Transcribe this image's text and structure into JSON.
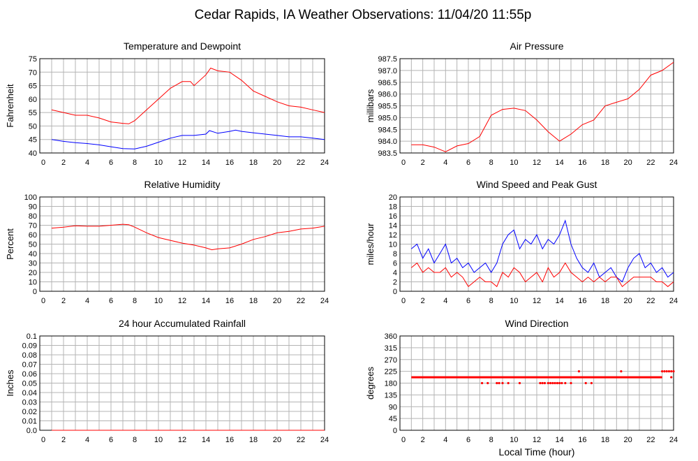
{
  "page_title": "Cedar Rapids, IA Weather Observations: 11/04/20 11:55p",
  "colors": {
    "red": "#ff0000",
    "blue": "#0000ff"
  },
  "chart_data": [
    {
      "id": "temp",
      "type": "line",
      "title": "Temperature and Dewpoint",
      "ylabel": "Fahrenheit",
      "xlabel": "",
      "xlim": [
        0,
        24
      ],
      "ylim": [
        40,
        75
      ],
      "xticks": [
        2,
        4,
        6,
        8,
        10,
        12,
        14,
        16,
        18,
        20,
        22,
        24
      ],
      "yticks": [
        40,
        45,
        50,
        55,
        60,
        65,
        70,
        75
      ],
      "ytick_labels": [
        "40",
        "45",
        "50",
        "55",
        "60",
        "65",
        "70",
        "75"
      ],
      "grid": true,
      "series": [
        {
          "color": "#ff0000",
          "x": [
            1,
            2,
            3,
            4,
            5,
            6,
            7,
            7.5,
            8,
            9,
            10,
            11,
            12,
            12.7,
            13,
            14,
            14.4,
            15,
            16,
            17,
            18,
            19,
            20,
            21,
            22,
            23,
            24
          ],
          "y": [
            56,
            55,
            54,
            54,
            53,
            51.5,
            51,
            50.8,
            52,
            56,
            60,
            64,
            66.5,
            66.5,
            65,
            69,
            71.5,
            70.5,
            70,
            67,
            63,
            61,
            59,
            57.5,
            57,
            56,
            55
          ]
        },
        {
          "color": "#0000ff",
          "x": [
            1,
            2,
            3,
            4,
            5,
            6,
            7,
            8,
            9,
            10,
            11,
            12,
            13,
            14,
            14.3,
            15,
            16,
            16.5,
            17,
            18,
            19,
            20,
            21,
            22,
            23,
            24
          ],
          "y": [
            45,
            44.3,
            43.8,
            43.5,
            43,
            42.3,
            41.6,
            41.5,
            42.5,
            44,
            45.5,
            46.5,
            46.5,
            47,
            48.3,
            47.3,
            48,
            48.5,
            48,
            47.5,
            47,
            46.5,
            46,
            46,
            45.5,
            45
          ]
        }
      ]
    },
    {
      "id": "pressure",
      "type": "line",
      "title": "Air Pressure",
      "ylabel": "millibars",
      "xlabel": "",
      "xlim": [
        0,
        24
      ],
      "ylim": [
        983.5,
        987.5
      ],
      "xticks": [
        2,
        4,
        6,
        8,
        10,
        12,
        14,
        16,
        18,
        20,
        22,
        24
      ],
      "yticks": [
        983.5,
        984.0,
        984.5,
        985.0,
        985.5,
        986.0,
        986.5,
        987.0,
        987.5
      ],
      "ytick_labels": [
        "983.5",
        "984.0",
        "984.5",
        "985.0",
        "985.5",
        "986.0",
        "986.5",
        "987.0",
        "987.5"
      ],
      "grid": true,
      "series": [
        {
          "color": "#ff0000",
          "x": [
            1,
            2,
            3,
            4,
            5,
            6,
            7,
            8,
            9,
            10,
            11,
            12,
            13,
            14,
            15,
            16,
            17,
            18,
            19,
            20,
            21,
            22,
            23,
            24
          ],
          "y": [
            983.85,
            983.85,
            983.75,
            983.55,
            983.8,
            983.9,
            984.2,
            985.1,
            985.35,
            985.4,
            985.3,
            984.9,
            984.4,
            984.0,
            984.3,
            984.7,
            984.9,
            985.5,
            985.65,
            985.8,
            986.2,
            986.8,
            987.0,
            987.35
          ]
        }
      ]
    },
    {
      "id": "humidity",
      "type": "line",
      "title": "Relative Humidity",
      "ylabel": "Percent",
      "xlabel": "",
      "xlim": [
        0,
        24
      ],
      "ylim": [
        0,
        100
      ],
      "xticks": [
        2,
        4,
        6,
        8,
        10,
        12,
        14,
        16,
        18,
        20,
        22,
        24
      ],
      "yticks": [
        0,
        10,
        20,
        30,
        40,
        50,
        60,
        70,
        80,
        90,
        100
      ],
      "ytick_labels": [
        "0",
        "10",
        "20",
        "30",
        "40",
        "50",
        "60",
        "70",
        "80",
        "90",
        "100"
      ],
      "grid": true,
      "series": [
        {
          "color": "#ff0000",
          "x": [
            1,
            2,
            3,
            4,
            5,
            6,
            7,
            7.5,
            8,
            9,
            10,
            11,
            12,
            13,
            14,
            14.5,
            15,
            16,
            17,
            18,
            19,
            20,
            21,
            22,
            23,
            24
          ],
          "y": [
            67,
            68,
            69.5,
            69,
            69,
            70,
            71,
            70.5,
            68,
            62,
            57,
            54,
            51,
            49,
            46,
            44,
            45,
            46,
            50,
            55,
            58,
            62,
            63.5,
            66,
            67,
            69
          ]
        }
      ]
    },
    {
      "id": "wind",
      "type": "line",
      "title": "Wind Speed and Peak Gust",
      "ylabel": "miles/hour",
      "xlabel": "",
      "xlim": [
        0,
        24
      ],
      "ylim": [
        0,
        20
      ],
      "xticks": [
        2,
        4,
        6,
        8,
        10,
        12,
        14,
        16,
        18,
        20,
        22,
        24
      ],
      "yticks": [
        0,
        2,
        4,
        6,
        8,
        10,
        12,
        14,
        16,
        18,
        20
      ],
      "ytick_labels": [
        "0",
        "2",
        "4",
        "6",
        "8",
        "10",
        "12",
        "14",
        "16",
        "18",
        "20"
      ],
      "grid": true,
      "series": [
        {
          "color": "#0000ff",
          "x": [
            1,
            1.5,
            2,
            2.5,
            3,
            3.5,
            4,
            4.5,
            5,
            5.5,
            6,
            6.5,
            7,
            7.5,
            8,
            8.5,
            9,
            9.5,
            10,
            10.5,
            11,
            11.5,
            12,
            12.5,
            13,
            13.5,
            14,
            14.5,
            15,
            15.5,
            16,
            16.5,
            17,
            17.5,
            18,
            18.5,
            19,
            19.5,
            20,
            20.5,
            21,
            21.5,
            22,
            22.5,
            23,
            23.5,
            24
          ],
          "y": [
            9,
            10,
            7,
            9,
            6,
            8,
            10,
            6,
            7,
            5,
            6,
            4,
            5,
            6,
            4,
            6,
            10,
            12,
            13,
            9,
            11,
            10,
            12,
            9,
            11,
            10,
            12,
            15,
            10,
            7,
            5,
            4,
            6,
            3,
            4,
            5,
            3,
            2,
            5,
            7,
            8,
            5,
            6,
            4,
            5,
            3,
            4
          ]
        },
        {
          "color": "#ff0000",
          "x": [
            1,
            1.5,
            2,
            2.5,
            3,
            3.5,
            4,
            4.5,
            5,
            5.5,
            6,
            6.5,
            7,
            7.5,
            8,
            8.5,
            9,
            9.5,
            10,
            10.5,
            11,
            11.5,
            12,
            12.5,
            13,
            13.5,
            14,
            14.5,
            15,
            15.5,
            16,
            16.5,
            17,
            17.5,
            18,
            18.5,
            19,
            19.5,
            20,
            20.5,
            21,
            21.5,
            22,
            22.5,
            23,
            23.5,
            24
          ],
          "y": [
            5,
            6,
            4,
            5,
            4,
            4,
            5,
            3,
            4,
            3,
            1,
            2,
            3,
            2,
            2,
            1,
            4,
            3,
            5,
            4,
            2,
            3,
            4,
            2,
            5,
            3,
            4,
            6,
            4,
            3,
            2,
            3,
            2,
            3,
            2,
            3,
            3,
            1,
            2,
            3,
            3,
            3,
            3,
            2,
            2,
            1,
            2
          ]
        }
      ]
    },
    {
      "id": "rain",
      "type": "line",
      "title": "24 hour Accumulated Rainfall",
      "ylabel": "Inches",
      "xlabel": "",
      "xlim": [
        0,
        24
      ],
      "ylim": [
        0,
        0.1
      ],
      "xticks": [
        2,
        4,
        6,
        8,
        10,
        12,
        14,
        16,
        18,
        20,
        22,
        24
      ],
      "yticks": [
        0,
        0.01,
        0.02,
        0.03,
        0.04,
        0.05,
        0.06,
        0.07,
        0.08,
        0.09,
        0.1
      ],
      "ytick_labels": [
        "0.0",
        "0.01",
        "0.02",
        "0.03",
        "0.04",
        "0.05",
        "0.06",
        "0.07",
        "0.08",
        "0.09",
        "0.1"
      ],
      "grid": true,
      "series": [
        {
          "color": "#ff0000",
          "x": [
            1,
            24
          ],
          "y": [
            0,
            0
          ]
        }
      ]
    },
    {
      "id": "direction",
      "type": "scatter",
      "title": "Wind Direction",
      "ylabel": "degrees",
      "xlabel": "Local Time (hour)",
      "xlim": [
        0,
        24
      ],
      "ylim": [
        0,
        360
      ],
      "xticks": [
        2,
        4,
        6,
        8,
        10,
        12,
        14,
        16,
        18,
        20,
        22,
        24
      ],
      "yticks": [
        0,
        45,
        90,
        135,
        180,
        225,
        270,
        315,
        360
      ],
      "ytick_labels": [
        "0",
        "45",
        "90",
        "135",
        "180",
        "225",
        "270",
        "315",
        "360"
      ],
      "grid": true,
      "series": [
        {
          "color": "#ff0000",
          "x": [
            7.2,
            7.7,
            8.5,
            8.7,
            9,
            9.5,
            10.5,
            12.3,
            12.5,
            12.7,
            13,
            13.2,
            13.4,
            13.6,
            13.8,
            14,
            14.2,
            14.5,
            15,
            16.3,
            16.8,
            15.7,
            19.4,
            23,
            23.2,
            23.4,
            23.6,
            23.8,
            24,
            23.8
          ],
          "y": [
            180,
            180,
            180,
            180,
            180,
            180,
            180,
            180,
            180,
            180,
            180,
            180,
            180,
            180,
            180,
            180,
            180,
            180,
            180,
            180,
            180,
            225,
            225,
            225,
            225,
            225,
            225,
            225,
            225,
            202.5
          ],
          "line_segments": [
            {
              "x": [
                1,
                23
              ],
              "y": [
                202.5,
                202.5
              ]
            }
          ]
        }
      ]
    }
  ]
}
